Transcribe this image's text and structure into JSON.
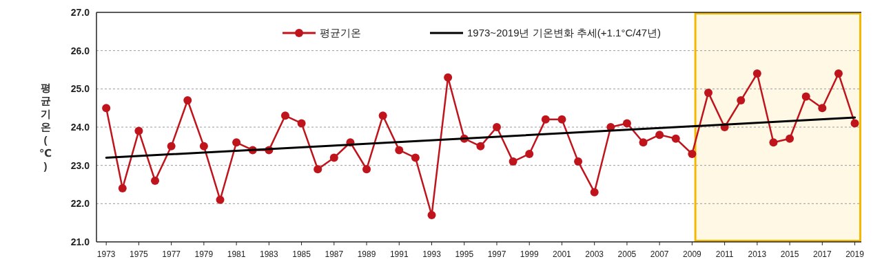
{
  "chart_data": {
    "type": "line",
    "ylabel": "평균기온(℃)",
    "xlim": [
      1972.4,
      2019.4
    ],
    "ylim": [
      21,
      27
    ],
    "xticks": [
      1973,
      1975,
      1977,
      1979,
      1981,
      1983,
      1985,
      1987,
      1989,
      1991,
      1993,
      1995,
      1997,
      1999,
      2001,
      2003,
      2005,
      2007,
      2009,
      2011,
      2013,
      2015,
      2017,
      2019
    ],
    "yticks": [
      {
        "value": 21,
        "label": "21.0"
      },
      {
        "value": 22,
        "label": "22.0"
      },
      {
        "value": 23,
        "label": "23.0"
      },
      {
        "value": 24,
        "label": "24.0"
      },
      {
        "value": 25,
        "label": "25.0"
      },
      {
        "value": 26,
        "label": "26.0"
      },
      {
        "value": 27,
        "label": "27.0"
      }
    ],
    "grid": "y",
    "legend": "top",
    "marker": "circle",
    "bands": [
      {
        "axis": "x",
        "from": 2009.2,
        "to": 2019.4,
        "color": "#f5b800"
      }
    ],
    "series": [
      {
        "name": "평균기온",
        "color": "#c0141c",
        "x": [
          1973,
          1974,
          1975,
          1976,
          1977,
          1978,
          1979,
          1980,
          1981,
          1982,
          1983,
          1984,
          1985,
          1986,
          1987,
          1988,
          1989,
          1990,
          1991,
          1992,
          1993,
          1994,
          1995,
          1996,
          1997,
          1998,
          1999,
          2000,
          2001,
          2002,
          2003,
          2004,
          2005,
          2006,
          2007,
          2008,
          2009,
          2010,
          2011,
          2012,
          2013,
          2014,
          2015,
          2016,
          2017,
          2018,
          2019
        ],
        "values": [
          24.5,
          22.4,
          23.9,
          22.6,
          23.5,
          24.7,
          23.5,
          22.1,
          23.6,
          23.4,
          23.4,
          24.3,
          24.1,
          22.9,
          23.2,
          23.6,
          22.9,
          24.3,
          23.4,
          23.2,
          21.7,
          25.3,
          23.7,
          23.5,
          24.0,
          23.1,
          23.3,
          24.2,
          24.2,
          23.1,
          22.3,
          24.0,
          24.1,
          23.6,
          23.8,
          23.7,
          23.3,
          24.9,
          24.0,
          24.7,
          25.4,
          23.6,
          23.7,
          24.8,
          24.5,
          25.4,
          24.1
        ]
      },
      {
        "name": "1973~2019년 기온변화 추세(+1.1°C/47년)",
        "color": "#000000",
        "marker": "none",
        "x": [
          1973,
          2019
        ],
        "values": [
          23.2,
          24.25
        ]
      }
    ]
  }
}
